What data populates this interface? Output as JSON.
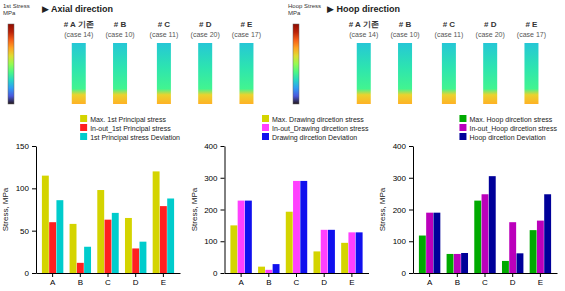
{
  "chart_data": [
    {
      "type": "image",
      "title": "▶ Axial direction",
      "annotations": [
        "# A 기존\n(case 14)",
        "# B\n(case 10)",
        "# C\n(case 11)",
        "# D\n(case 20)",
        "# E\n(case 17)"
      ],
      "colorbar_label": "1st Stress\nMPa"
    },
    {
      "type": "image",
      "title": "▶ Hoop direction",
      "annotations": [
        "# A 기존\n(case 14)",
        "# B\n(case 10)",
        "# C\n(case 11)",
        "# D\n(case 20)",
        "# E\n(case 17)"
      ],
      "colorbar_label": "Hoop Stress\nMPa"
    },
    {
      "type": "bar",
      "categories": [
        "A",
        "B",
        "C",
        "D",
        "E"
      ],
      "series": [
        {
          "name": "Max. 1st Principal stress",
          "color": "#d4d400",
          "values": [
            115,
            58,
            98,
            65,
            120
          ]
        },
        {
          "name": "In-out_1st Principal stress",
          "color": "#ff2020",
          "values": [
            60,
            12,
            63,
            29,
            79
          ]
        },
        {
          "name": "1st Principal stress Deviation",
          "color": "#00cccc",
          "values": [
            86,
            31,
            71,
            37,
            88
          ]
        }
      ],
      "ylabel": "Stress, MPa",
      "ylim": [
        0,
        150
      ],
      "yticks": [
        0,
        50,
        100,
        150
      ],
      "legend": "upper right",
      "grid": false
    },
    {
      "type": "bar",
      "categories": [
        "A",
        "B",
        "C",
        "D",
        "E"
      ],
      "series": [
        {
          "name": "Max. Drawing dircetion stress",
          "color": "#d4d400",
          "values": [
            150,
            20,
            193,
            68,
            95
          ]
        },
        {
          "name": "In-out_Drawing dircetion stress",
          "color": "#ff40ff",
          "values": [
            228,
            10,
            290,
            136,
            128
          ]
        },
        {
          "name": "Drawing dircetion Deviation",
          "color": "#1010ee",
          "values": [
            228,
            28,
            290,
            136,
            128
          ]
        }
      ],
      "ylabel": "Stress, MPa",
      "ylim": [
        0,
        400
      ],
      "yticks": [
        0,
        100,
        200,
        300,
        400
      ],
      "legend": "upper right",
      "grid": false
    },
    {
      "type": "bar",
      "categories": [
        "A",
        "B",
        "C",
        "D",
        "E"
      ],
      "series": [
        {
          "name": "Max. Hoop dircetion stress",
          "color": "#00aa00",
          "values": [
            118,
            60,
            228,
            38,
            135
          ]
        },
        {
          "name": "In-out_Hoop dircetion stress",
          "color": "#bb00bb",
          "values": [
            190,
            60,
            248,
            160,
            165
          ]
        },
        {
          "name": "Hoop dircetion Deviation",
          "color": "#000099",
          "values": [
            190,
            63,
            305,
            62,
            248
          ]
        }
      ],
      "ylabel": "Stress, MPa",
      "ylim": [
        0,
        400
      ],
      "yticks": [
        0,
        100,
        200,
        300,
        400
      ],
      "legend": "upper right",
      "grid": false
    }
  ]
}
